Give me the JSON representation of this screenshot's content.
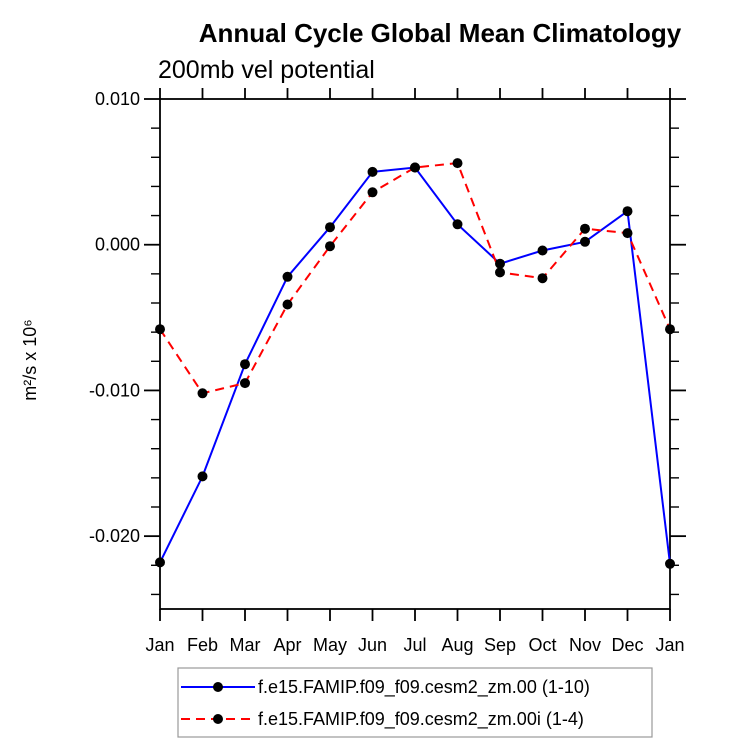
{
  "title": "Annual Cycle Global Mean Climatology",
  "subtitle": "200mb vel potential",
  "chart_data": {
    "type": "line",
    "title": "Annual Cycle Global Mean Climatology",
    "subtitle": "200mb vel potential",
    "ylabel": "m²/s x 10⁶",
    "xlabel": "",
    "categories": [
      "Jan",
      "Feb",
      "Mar",
      "Apr",
      "May",
      "Jun",
      "Jul",
      "Aug",
      "Sep",
      "Oct",
      "Nov",
      "Dec",
      "Jan"
    ],
    "series": [
      {
        "name": "f.e15.FAMIP.f09_f09.cesm2_zm.00 (1-10)",
        "color": "#0000ff",
        "line_style": "solid",
        "marker": "black-dot",
        "marker_color": "#000000",
        "values": [
          -0.0218,
          -0.0159,
          -0.0082,
          -0.0022,
          0.0012,
          0.005,
          0.0053,
          0.0014,
          -0.0013,
          -0.0004,
          0.0002,
          0.0023,
          -0.0219
        ]
      },
      {
        "name": "f.e15.FAMIP.f09_f09.cesm2_zm.00i (1-4)",
        "color": "#ff0000",
        "line_style": "dashed",
        "marker": "black-dot",
        "marker_color": "#000000",
        "values": [
          -0.0058,
          -0.0102,
          -0.0095,
          -0.0041,
          -0.0001,
          0.0036,
          0.0053,
          0.0056,
          -0.0019,
          -0.0023,
          0.0011,
          0.0008,
          -0.0058
        ]
      }
    ],
    "ylim": [
      -0.025,
      0.01
    ],
    "yticks_major": [
      0.01,
      0.0,
      -0.01,
      -0.02
    ],
    "ytick_labels": [
      "0.010",
      "0.000",
      "-0.010",
      "-0.020"
    ],
    "y_minor_step": 0.002,
    "grid": false,
    "legend_position": "bottom",
    "frame_color": "#000000",
    "legend_border_color": "#999999"
  }
}
